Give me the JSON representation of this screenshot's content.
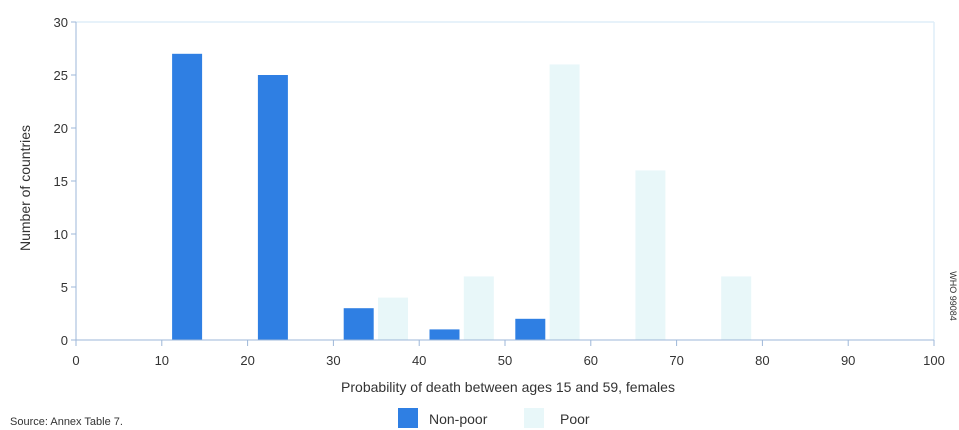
{
  "chart_data": {
    "type": "bar",
    "xlabel": "Probability of death between ages 15 and 59, females",
    "ylabel": "Number of countries",
    "xlim": [
      0,
      100
    ],
    "ylim": [
      0,
      30
    ],
    "x_ticks": [
      "0",
      "10",
      "20",
      "30",
      "40",
      "50",
      "60",
      "70",
      "80",
      "90",
      "100"
    ],
    "y_ticks": [
      "0",
      "5",
      "10",
      "15",
      "20",
      "25",
      "30"
    ],
    "bin_width": 10,
    "series": [
      {
        "name": "Non-poor",
        "color": "#2f7fe3",
        "bins": [
          10,
          20,
          30,
          40,
          50
        ],
        "values": [
          27,
          25,
          3,
          1,
          2
        ]
      },
      {
        "name": "Poor",
        "color": "#e8f7f9",
        "bins": [
          30,
          40,
          50,
          60,
          70
        ],
        "values": [
          4,
          6,
          26,
          16,
          6
        ]
      }
    ],
    "legend_position": "bottom-center",
    "grid": false
  },
  "source": "Source: Annex Table 7.",
  "figure_code": "WHO 99084"
}
